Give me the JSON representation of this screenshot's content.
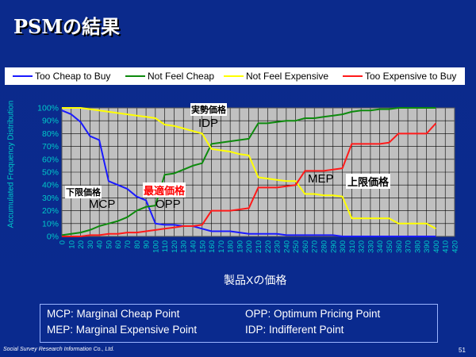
{
  "slide": {
    "title": "PSMの結果",
    "footer_company": "Social Survey Research Information Co., Ltd.",
    "page_number": "51",
    "background_color": "#0b2a8c"
  },
  "definitions": [
    "MCP: Marginal Cheap Point",
    "OPP: Optimum Pricing Point",
    "MEP: Marginal Expensive Point",
    "IDP: Indifferent Point"
  ],
  "chart_data": {
    "type": "line",
    "title": "",
    "xlabel": "製品Xの価格",
    "ylabel": "Accumulated Frequency Distribution",
    "xlim": [
      0,
      420
    ],
    "ylim": [
      0,
      100
    ],
    "x_ticks": [
      0,
      10,
      20,
      30,
      40,
      50,
      60,
      70,
      80,
      90,
      100,
      110,
      120,
      130,
      140,
      150,
      160,
      170,
      180,
      190,
      200,
      210,
      220,
      230,
      240,
      250,
      260,
      270,
      280,
      290,
      300,
      310,
      320,
      330,
      340,
      350,
      360,
      370,
      380,
      390,
      400,
      410,
      420
    ],
    "y_ticks": [
      "0%",
      "10%",
      "20%",
      "30%",
      "40%",
      "50%",
      "60%",
      "70%",
      "80%",
      "90%",
      "100%"
    ],
    "grid": true,
    "legend_position": "top",
    "x": [
      0,
      10,
      20,
      30,
      40,
      50,
      60,
      70,
      80,
      90,
      100,
      110,
      120,
      130,
      140,
      150,
      160,
      170,
      180,
      190,
      200,
      210,
      220,
      230,
      240,
      250,
      260,
      270,
      280,
      290,
      300,
      310,
      320,
      330,
      340,
      350,
      360,
      370,
      380,
      390,
      400
    ],
    "series": [
      {
        "name": "Too Cheap to Buy",
        "color": "#1a1aff",
        "values": [
          98,
          95,
          89,
          78,
          75,
          43,
          40,
          37,
          31,
          28,
          10,
          9,
          9,
          8,
          8,
          6,
          4,
          4,
          4,
          3,
          2,
          2,
          2,
          2,
          1,
          1,
          1,
          1,
          1,
          1,
          0,
          0,
          0,
          0,
          0,
          0,
          0,
          0,
          0,
          0,
          0
        ]
      },
      {
        "name": "Not Feel Cheap",
        "color": "#0d8a0d",
        "values": [
          1,
          2,
          3,
          5,
          8,
          10,
          12,
          15,
          20,
          23,
          24,
          48,
          49,
          52,
          55,
          57,
          72,
          73,
          74,
          75,
          76,
          88,
          88,
          89,
          90,
          90,
          92,
          92,
          93,
          94,
          95,
          97,
          98,
          98,
          99,
          99,
          100,
          100,
          100,
          100,
          100
        ]
      },
      {
        "name": "Not Feel Expensive",
        "color": "#ffff00",
        "values": [
          100,
          100,
          100,
          99,
          98,
          97,
          96,
          95,
          94,
          93,
          92,
          87,
          86,
          84,
          82,
          80,
          68,
          67,
          66,
          64,
          63,
          46,
          45,
          44,
          43,
          43,
          33,
          33,
          32,
          32,
          31,
          14,
          14,
          14,
          14,
          14,
          10,
          10,
          10,
          10,
          6
        ]
      },
      {
        "name": "Too Expensive to Buy",
        "color": "#ff1a1a",
        "values": [
          0,
          0,
          0,
          1,
          1,
          2,
          2,
          3,
          3,
          4,
          5,
          6,
          7,
          8,
          8,
          9,
          20,
          20,
          20,
          21,
          22,
          38,
          38,
          38,
          39,
          40,
          51,
          51,
          51,
          52,
          53,
          72,
          72,
          72,
          72,
          73,
          80,
          80,
          80,
          80,
          88
        ]
      }
    ],
    "annotations": [
      {
        "label": "実勢価格",
        "boxed": true
      },
      {
        "label": "IDP",
        "boxed": false
      },
      {
        "label": "下限価格",
        "boxed": true
      },
      {
        "label": "MCP",
        "boxed": false
      },
      {
        "label": "最適価格",
        "boxed": true,
        "color": "#ff0000"
      },
      {
        "label": "OPP",
        "boxed": false
      },
      {
        "label": "MEP",
        "boxed": false
      },
      {
        "label": "上限価格",
        "boxed": true
      }
    ]
  }
}
